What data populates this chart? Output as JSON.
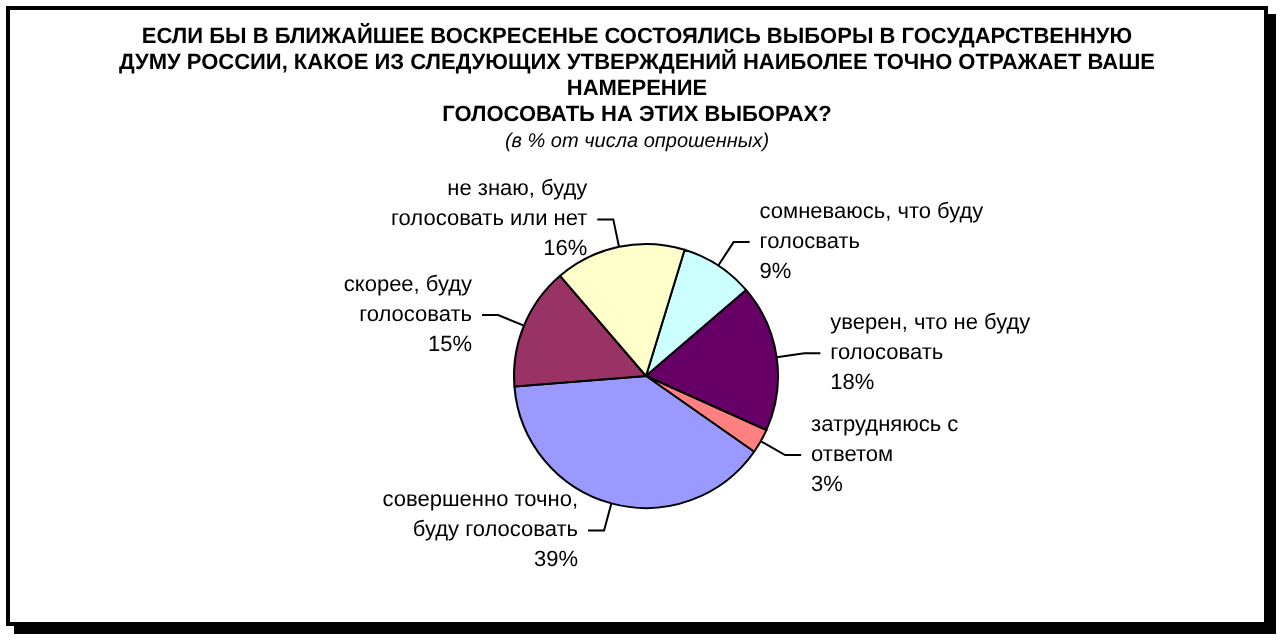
{
  "chart_data": {
    "type": "pie",
    "title": "ЕСЛИ БЫ В БЛИЖАЙШЕЕ ВОСКРЕСЕНЬЕ СОСТОЯЛИСЬ ВЫБОРЫ В ГОСУДАРСТВЕННУЮ\nДУМУ РОССИИ, КАКОЕ ИЗ СЛЕДУЮЩИХ УТВЕРЖДЕНИЙ НАИБОЛЕЕ ТОЧНО ОТРАЖАЕТ ВАШЕ\nНАМЕРЕНИЕ\nГОЛОСОВАТЬ НА ЭТИХ ВЫБОРАХ?",
    "subtitle": "(в % от числа опрошенных)",
    "categories": [
      "сомневаюсь, что буду\nголосвать",
      "уверен, что не буду\nголосовать",
      "затрудняюсь с\nответом",
      "совершенно точно,\nбуду голосовать",
      "скорее, буду\nголосовать",
      "не знаю, буду\nголосовать или нет"
    ],
    "values": [
      9,
      18,
      3,
      39,
      15,
      16
    ],
    "value_labels": [
      "9%",
      "18%",
      "3%",
      "39%",
      "15%",
      "16%"
    ],
    "colors": [
      "#ccffff",
      "#660066",
      "#ff8080",
      "#9999ff",
      "#993366",
      "#ffffcc"
    ],
    "legend": false
  }
}
